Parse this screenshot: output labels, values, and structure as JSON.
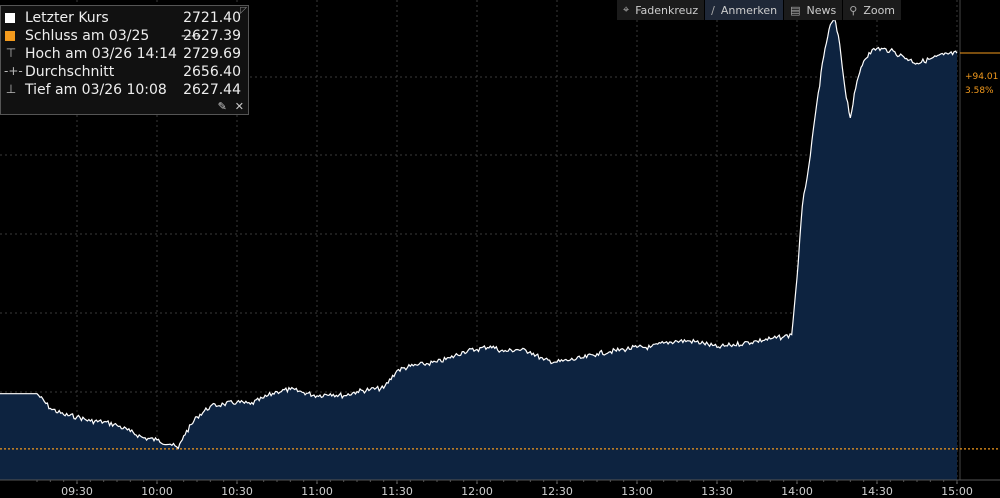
{
  "legend": {
    "rows": [
      {
        "label": "Letzter Kurs",
        "value": "2721.40",
        "symbol": "white-square"
      },
      {
        "label": "Schluss am 03/25",
        "dashes": "----",
        "value": "2627.39",
        "symbol": "orange-square"
      },
      {
        "label": "Hoch am 03/26 14:14",
        "value": "2729.69",
        "symbol": "high-marker"
      },
      {
        "label": "Durchschnitt",
        "value": "2656.40",
        "symbol": "average-marker"
      },
      {
        "label": "Tief am 03/26 10:08",
        "value": "2627.44",
        "symbol": "low-marker"
      }
    ],
    "tools": [
      "pin-icon",
      "close-icon"
    ]
  },
  "toolbar": {
    "buttons": [
      {
        "label": "Fadenkreuz",
        "icon": "crosshair-icon",
        "active": false
      },
      {
        "label": "Anmerken",
        "icon": "pencil-icon",
        "active": true
      },
      {
        "label": "News",
        "icon": "news-icon",
        "active": false
      },
      {
        "label": "Zoom",
        "icon": "zoom-icon",
        "active": false
      }
    ]
  },
  "right_labels": {
    "change": "+94.01",
    "percent": "3.58%"
  },
  "colors": {
    "line": "#ffffff",
    "area": "#0d2340",
    "reference": "#f39a1d",
    "grid": "#3a3a3a",
    "background": "#000000"
  },
  "chart_data": {
    "type": "area",
    "x_tick_labels": [
      "09:30",
      "10:00",
      "10:30",
      "11:00",
      "11:30",
      "12:00",
      "12:30",
      "13:00",
      "13:30",
      "14:00",
      "14:30",
      "15:00"
    ],
    "reference_line": {
      "label": "Schluss am 03/25",
      "value": 2627.39
    },
    "ylim": [
      2620,
      2734
    ],
    "grid": true,
    "series": [
      {
        "name": "Letzter Kurs",
        "x": [
          "09:15",
          "09:20",
          "09:25",
          "09:30",
          "09:35",
          "09:40",
          "09:45",
          "09:50",
          "09:55",
          "10:00",
          "10:05",
          "10:08",
          "10:10",
          "10:15",
          "10:20",
          "10:25",
          "10:30",
          "10:35",
          "10:40",
          "10:45",
          "10:50",
          "10:55",
          "11:00",
          "11:05",
          "11:10",
          "11:15",
          "11:20",
          "11:25",
          "11:30",
          "11:35",
          "11:40",
          "11:45",
          "11:50",
          "11:55",
          "12:00",
          "12:05",
          "12:10",
          "12:15",
          "12:20",
          "12:25",
          "12:30",
          "12:35",
          "12:40",
          "12:45",
          "12:50",
          "12:55",
          "13:00",
          "13:05",
          "13:10",
          "13:15",
          "13:20",
          "13:25",
          "13:30",
          "13:35",
          "13:40",
          "13:45",
          "13:50",
          "13:55",
          "13:58",
          "14:00",
          "14:02",
          "14:05",
          "14:08",
          "14:10",
          "14:12",
          "14:14",
          "14:16",
          "14:18",
          "14:20",
          "14:22",
          "14:24",
          "14:25",
          "14:27",
          "14:30",
          "14:35",
          "14:40",
          "14:45",
          "14:50",
          "14:55",
          "15:00"
        ],
        "y": [
          2640.5,
          2637.0,
          2635.5,
          2635.0,
          2634.0,
          2633.8,
          2633.0,
          2631.5,
          2630.0,
          2629.5,
          2628.5,
          2627.5,
          2630.5,
          2635.0,
          2637.5,
          2638.0,
          2638.5,
          2638.0,
          2639.5,
          2641.0,
          2641.5,
          2640.8,
          2640.0,
          2640.5,
          2640.0,
          2641.0,
          2641.5,
          2641.8,
          2646.0,
          2647.0,
          2647.5,
          2648.0,
          2649.0,
          2650.5,
          2651.0,
          2651.8,
          2650.5,
          2651.0,
          2650.5,
          2648.5,
          2648.0,
          2648.5,
          2649.0,
          2650.0,
          2650.5,
          2651.0,
          2651.5,
          2651.5,
          2652.5,
          2653.0,
          2653.0,
          2652.5,
          2651.5,
          2652.0,
          2652.5,
          2653.0,
          2653.5,
          2654.0,
          2654.5,
          2668.0,
          2685.0,
          2697.0,
          2712.0,
          2720.5,
          2727.0,
          2729.69,
          2723.5,
          2713.0,
          2706.0,
          2713.0,
          2718.0,
          2719.5,
          2721.5,
          2722.5,
          2722.0,
          2720.5,
          2719.0,
          2720.0,
          2721.0,
          2721.4
        ]
      }
    ]
  }
}
